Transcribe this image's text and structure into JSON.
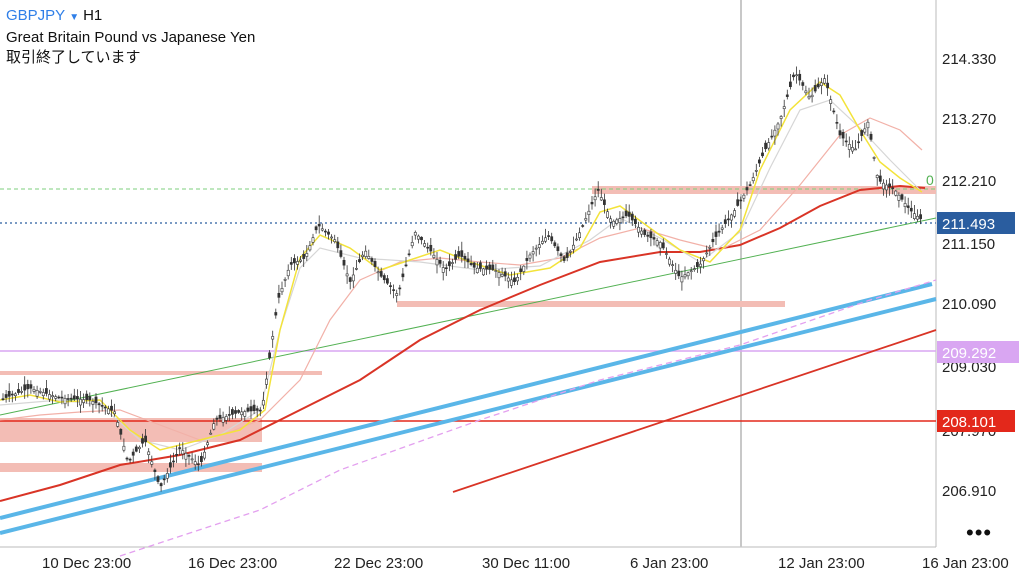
{
  "header": {
    "symbol": "GBPJPY",
    "dropdown_icon": "triangle-down-icon",
    "timeframe": "H1",
    "description": "Great Britain Pound vs Japanese Yen",
    "status": "取引終了しています"
  },
  "more_icon": "ellipsis-icon",
  "price_axis": {
    "ticks": [
      "214.330",
      "213.270",
      "212.210",
      "211.150",
      "210.090",
      "209.030",
      "207.970",
      "206.910"
    ],
    "current_price": "211.493",
    "current_color": "#2a5d9f",
    "level_violet": "209.292",
    "level_violet_color": "#d9a6f2",
    "level_red": "208.101",
    "level_red_color": "#e3281b",
    "fib_label": "0"
  },
  "time_axis": {
    "ticks": [
      "10 Dec 23:00",
      "16 Dec 23:00",
      "22 Dec 23:00",
      "30 Dec 11:00",
      "6 Jan 23:00",
      "12 Jan 23:00",
      "16 Jan 23:00"
    ]
  },
  "colors": {
    "candle": "#333333",
    "ma_fast": "#f3e33a",
    "ma_mid": "#d6d6d6",
    "ma_slow": "#f2b1a8",
    "ma_200": "#d93426",
    "channel": "#5ab6e8",
    "zone": "#f3bdb5"
  }
}
